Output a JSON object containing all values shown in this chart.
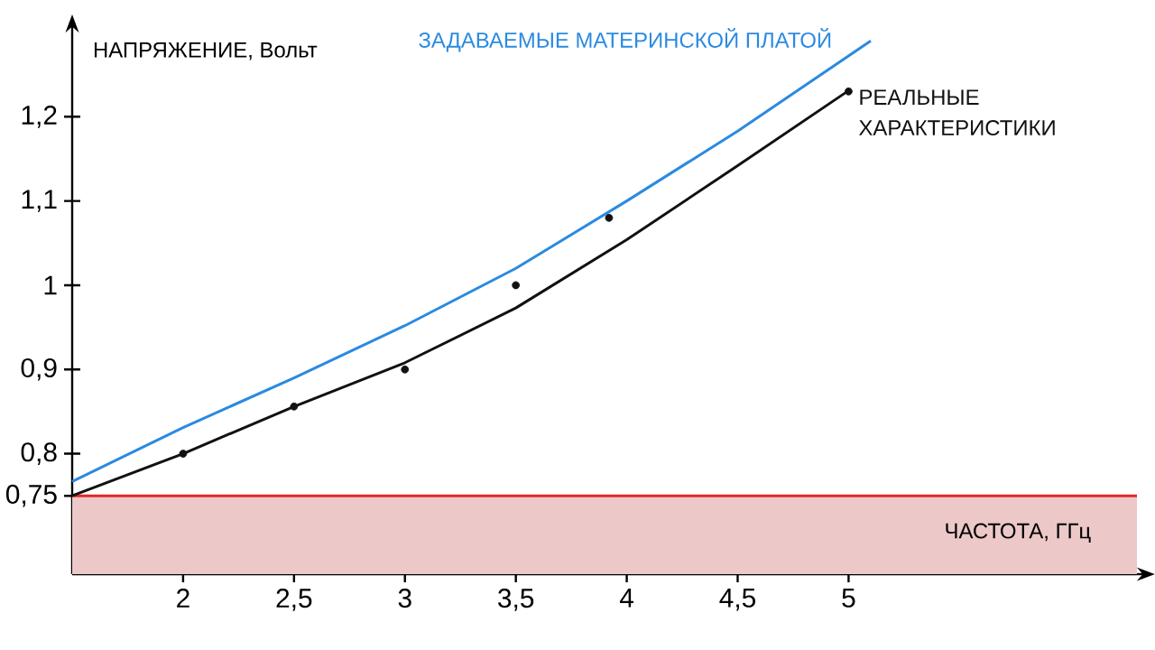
{
  "chart_data": {
    "type": "line",
    "xlabel": "ЧАСТОТА, ГГц",
    "ylabel": "НАПРЯЖЕНИЕ, Вольт",
    "xlim": [
      1.5,
      6.3
    ],
    "ylim": [
      0.657,
      1.3
    ],
    "xticks": [
      2,
      {
        "value": 2.5,
        "label": "2,5"
      },
      3,
      {
        "value": 3.5,
        "label": "3,5"
      },
      4,
      {
        "value": 4.5,
        "label": "4,5"
      },
      5
    ],
    "yticks": [
      {
        "value": 0.75,
        "label": "0,75"
      },
      {
        "value": 0.8,
        "label": "0,8"
      },
      {
        "value": 0.9,
        "label": "0,9"
      },
      1,
      {
        "value": 1.1,
        "label": "1,1"
      },
      {
        "value": 1.2,
        "label": "1,2"
      }
    ],
    "grid": false,
    "legend": false,
    "ref_lines": [
      {
        "axis": "y",
        "value": 0.75,
        "color": "#e0282a"
      }
    ],
    "bands": [
      {
        "axis": "y",
        "from": 0.657,
        "to": 0.75,
        "color": "#ecc8c8"
      }
    ],
    "series": [
      {
        "name": "ЗАДАВАЕМЫЕ МАТЕРИНСКОЙ ПЛАТОЙ",
        "color": "#2a8ae0",
        "x": [
          1.5,
          2,
          2.5,
          3,
          3.5,
          4,
          4.5,
          5.1
        ],
        "values": [
          0.767,
          0.831,
          0.89,
          0.952,
          1.02,
          1.1,
          1.183,
          1.29
        ]
      },
      {
        "name": "РЕАЛЬНЫЕ ХАРАКТЕРИСТИКИ",
        "color": "#111111",
        "x": [
          1.5,
          2,
          2.5,
          3,
          3.5,
          4,
          4.5,
          5
        ],
        "values": [
          0.75,
          0.8,
          0.856,
          0.908,
          0.973,
          1.054,
          1.142,
          1.231
        ]
      },
      {
        "type": "scatter",
        "color": "#111111",
        "marker": "circle",
        "x": [
          2,
          2.5,
          3,
          3.5,
          3.92,
          5
        ],
        "values": [
          0.8,
          0.856,
          0.9,
          1.0,
          1.08,
          1.23
        ]
      }
    ]
  }
}
